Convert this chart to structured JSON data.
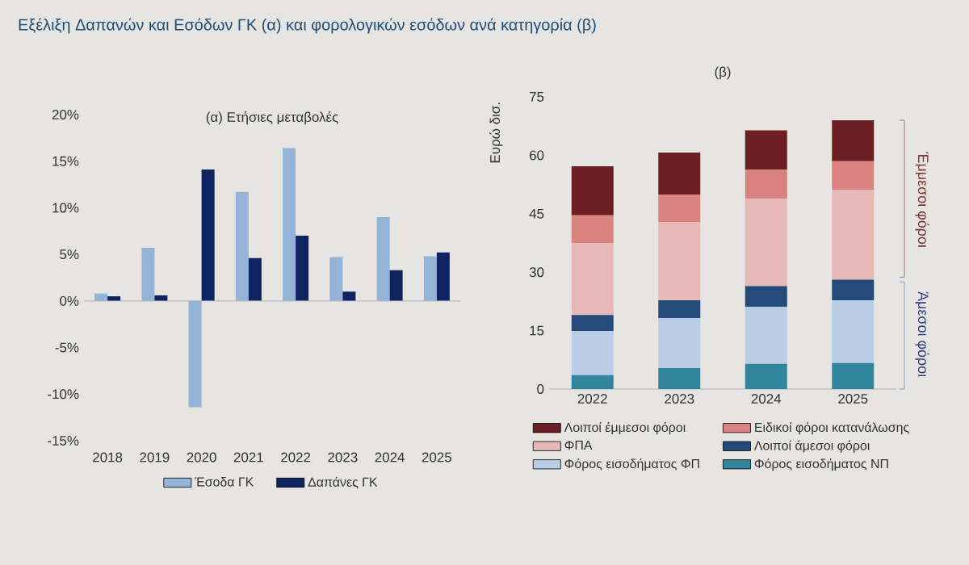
{
  "chart_data": [
    {
      "type": "bar",
      "title": "(α) Ετήσιες μεταβολές",
      "annotations": [
        "Εξέλιξη Δαπανών και Εσόδων ΓΚ (α) και φορολογικών εσόδων ανά κατηγορία (β)"
      ],
      "categories": [
        "2018",
        "2019",
        "2020",
        "2021",
        "2022",
        "2023",
        "2024",
        "2025"
      ],
      "series": [
        {
          "name": "Έσοδα ΓΚ",
          "color": "#95b3d7",
          "values": [
            0.8,
            5.7,
            -11.4,
            11.7,
            16.4,
            4.7,
            9.0,
            4.8
          ]
        },
        {
          "name": "Δαπάνες ΓΚ",
          "color": "#0f2360",
          "values": [
            0.5,
            0.6,
            14.1,
            4.6,
            7.0,
            1.0,
            3.3,
            5.2
          ]
        }
      ],
      "ylim": [
        -15,
        20
      ],
      "yticks": [
        {
          "value": -15,
          "label": "-15%"
        },
        {
          "value": -10,
          "label": "-10%"
        },
        {
          "value": -5,
          "label": "-5%"
        },
        {
          "value": 0,
          "label": "0%"
        },
        {
          "value": 5,
          "label": "5%"
        },
        {
          "value": 10,
          "label": "10%"
        },
        {
          "value": 15,
          "label": "15%"
        },
        {
          "value": 20,
          "label": "20%"
        }
      ],
      "legend": "bottom"
    },
    {
      "type": "bar",
      "title": "(β)",
      "ylabel": "Ευρώ δισ.",
      "stacked": true,
      "annotations": [
        "Έμμεσοι φόροι",
        "Άμεσοι φόροι"
      ],
      "categories": [
        "2022",
        "2023",
        "2024",
        "2025"
      ],
      "series": [
        {
          "name": "Φόρος εισοδήματος ΝΠ",
          "color": "#31859c",
          "values": [
            3.6,
            5.4,
            6.5,
            6.7
          ]
        },
        {
          "name": "Φόρος εισοδήματος ΦΠ",
          "color": "#b9cde5",
          "values": [
            11.3,
            12.8,
            14.6,
            16.1
          ]
        },
        {
          "name": "Λοιποί άμεσοι φόροι",
          "color": "#254a7c",
          "values": [
            4.1,
            4.6,
            5.3,
            5.3
          ]
        },
        {
          "name": "ΦΠΑ",
          "color": "#e6b9b8",
          "values": [
            18.5,
            20.1,
            22.5,
            23.0
          ]
        },
        {
          "name": "Ειδικοί φόροι κατανάλωσης",
          "color": "#d9827f",
          "values": [
            7.1,
            7.0,
            7.4,
            7.4
          ]
        },
        {
          "name": "Λοιποί έμμεσοι φόροι",
          "color": "#6b1f22",
          "values": [
            12.6,
            10.8,
            10.1,
            10.5
          ]
        }
      ],
      "ylim": [
        0,
        75
      ],
      "yticks": [
        0,
        15,
        30,
        45,
        60,
        75
      ],
      "grid": false,
      "legend": "bottom"
    }
  ]
}
